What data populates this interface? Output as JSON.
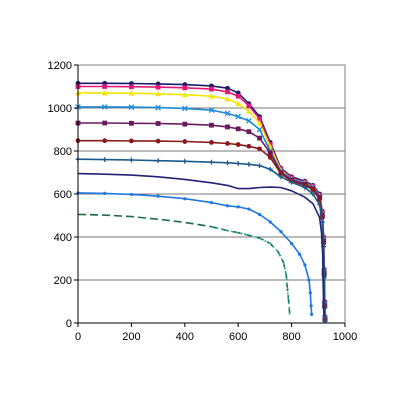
{
  "chart_data": {
    "type": "line",
    "title": "",
    "xlabel": "",
    "ylabel": "",
    "xlim": [
      0,
      1000
    ],
    "ylim": [
      0,
      1200
    ],
    "x_ticks": [
      0,
      200,
      400,
      600,
      800,
      1000
    ],
    "y_ticks": [
      0,
      200,
      400,
      600,
      800,
      1000,
      1200
    ],
    "x_tick_labels": [
      "0",
      "200",
      "400",
      "600",
      "800",
      "1000"
    ],
    "y_tick_labels": [
      "0",
      "200",
      "400",
      "600",
      "800",
      "1000",
      "1200"
    ],
    "grid": {
      "horizontal": true,
      "vertical": false
    },
    "legend": "none",
    "series": [
      {
        "color": "#1a1a6b",
        "marker": "circle",
        "dash": "",
        "points": [
          [
            0,
            1115
          ],
          [
            100,
            1115
          ],
          [
            200,
            1114
          ],
          [
            300,
            1112
          ],
          [
            400,
            1109
          ],
          [
            500,
            1103
          ],
          [
            560,
            1092
          ],
          [
            600,
            1070
          ],
          [
            640,
            1020
          ],
          [
            680,
            960
          ],
          [
            720,
            840
          ],
          [
            760,
            720
          ],
          [
            800,
            680
          ],
          [
            850,
            660
          ],
          [
            880,
            640
          ],
          [
            905,
            600
          ],
          [
            915,
            520
          ],
          [
            920,
            400
          ],
          [
            922,
            250
          ],
          [
            924,
            100
          ],
          [
            925,
            30
          ]
        ]
      },
      {
        "color": "#e0197a",
        "marker": "square",
        "dash": "",
        "points": [
          [
            0,
            1100
          ],
          [
            100,
            1100
          ],
          [
            200,
            1099
          ],
          [
            300,
            1097
          ],
          [
            400,
            1094
          ],
          [
            500,
            1088
          ],
          [
            560,
            1075
          ],
          [
            600,
            1055
          ],
          [
            640,
            1010
          ],
          [
            680,
            950
          ],
          [
            720,
            830
          ],
          [
            760,
            715
          ],
          [
            800,
            675
          ],
          [
            850,
            655
          ],
          [
            880,
            635
          ],
          [
            905,
            595
          ],
          [
            915,
            515
          ],
          [
            920,
            395
          ],
          [
            922,
            245
          ],
          [
            924,
            95
          ],
          [
            925,
            25
          ]
        ]
      },
      {
        "color": "#f2e600",
        "marker": "triangle",
        "dash": "",
        "points": [
          [
            0,
            1070
          ],
          [
            100,
            1070
          ],
          [
            200,
            1069
          ],
          [
            300,
            1066
          ],
          [
            400,
            1062
          ],
          [
            500,
            1055
          ],
          [
            560,
            1042
          ],
          [
            600,
            1020
          ],
          [
            640,
            985
          ],
          [
            680,
            930
          ],
          [
            720,
            820
          ],
          [
            760,
            710
          ],
          [
            800,
            670
          ],
          [
            850,
            650
          ],
          [
            880,
            630
          ],
          [
            905,
            590
          ],
          [
            915,
            510
          ],
          [
            920,
            390
          ],
          [
            922,
            240
          ],
          [
            924,
            90
          ],
          [
            925,
            20
          ]
        ]
      },
      {
        "color": "#1e8ad6",
        "marker": "x",
        "dash": "",
        "points": [
          [
            0,
            1005
          ],
          [
            100,
            1005
          ],
          [
            200,
            1004
          ],
          [
            300,
            1002
          ],
          [
            400,
            998
          ],
          [
            500,
            990
          ],
          [
            560,
            975
          ],
          [
            600,
            960
          ],
          [
            640,
            940
          ],
          [
            680,
            900
          ],
          [
            720,
            800
          ],
          [
            760,
            705
          ],
          [
            800,
            670
          ],
          [
            850,
            650
          ],
          [
            880,
            630
          ],
          [
            905,
            590
          ],
          [
            915,
            505
          ],
          [
            920,
            385
          ],
          [
            922,
            235
          ],
          [
            924,
            85
          ],
          [
            925,
            20
          ]
        ]
      },
      {
        "color": "#6a1a5c",
        "marker": "square",
        "dash": "",
        "points": [
          [
            0,
            930
          ],
          [
            100,
            930
          ],
          [
            200,
            929
          ],
          [
            300,
            928
          ],
          [
            400,
            925
          ],
          [
            500,
            920
          ],
          [
            560,
            912
          ],
          [
            600,
            903
          ],
          [
            640,
            890
          ],
          [
            680,
            860
          ],
          [
            720,
            790
          ],
          [
            760,
            700
          ],
          [
            800,
            665
          ],
          [
            850,
            645
          ],
          [
            880,
            625
          ],
          [
            905,
            585
          ],
          [
            915,
            500
          ],
          [
            920,
            380
          ],
          [
            922,
            230
          ],
          [
            924,
            80
          ],
          [
            925,
            15
          ]
        ]
      },
      {
        "color": "#8b1a1a",
        "marker": "circle",
        "dash": "",
        "points": [
          [
            0,
            848
          ],
          [
            100,
            848
          ],
          [
            200,
            847
          ],
          [
            300,
            846
          ],
          [
            400,
            844
          ],
          [
            500,
            840
          ],
          [
            560,
            835
          ],
          [
            600,
            830
          ],
          [
            640,
            822
          ],
          [
            680,
            810
          ],
          [
            720,
            770
          ],
          [
            760,
            695
          ],
          [
            800,
            660
          ],
          [
            850,
            640
          ],
          [
            880,
            620
          ],
          [
            905,
            575
          ],
          [
            915,
            490
          ],
          [
            920,
            370
          ],
          [
            922,
            220
          ],
          [
            924,
            75
          ],
          [
            925,
            15
          ]
        ]
      },
      {
        "color": "#1a5a8c",
        "marker": "plus",
        "dash": "",
        "points": [
          [
            0,
            762
          ],
          [
            100,
            760
          ],
          [
            200,
            758
          ],
          [
            300,
            755
          ],
          [
            400,
            752
          ],
          [
            500,
            748
          ],
          [
            560,
            745
          ],
          [
            600,
            742
          ],
          [
            640,
            738
          ],
          [
            680,
            732
          ],
          [
            720,
            715
          ],
          [
            760,
            680
          ],
          [
            800,
            655
          ],
          [
            850,
            630
          ],
          [
            880,
            600
          ],
          [
            905,
            550
          ],
          [
            915,
            470
          ],
          [
            920,
            355
          ],
          [
            922,
            210
          ],
          [
            924,
            70
          ],
          [
            925,
            10
          ]
        ]
      },
      {
        "color": "#22227a",
        "marker": "none",
        "dash": "",
        "points": [
          [
            0,
            695
          ],
          [
            100,
            692
          ],
          [
            200,
            688
          ],
          [
            300,
            680
          ],
          [
            400,
            668
          ],
          [
            500,
            652
          ],
          [
            560,
            640
          ],
          [
            600,
            625
          ],
          [
            640,
            625
          ],
          [
            680,
            630
          ],
          [
            720,
            632
          ],
          [
            760,
            630
          ],
          [
            800,
            615
          ],
          [
            850,
            585
          ],
          [
            880,
            555
          ],
          [
            905,
            490
          ],
          [
            912,
            420
          ],
          [
            916,
            330
          ],
          [
            918,
            200
          ],
          [
            920,
            80
          ],
          [
            921,
            30
          ]
        ]
      },
      {
        "color": "#1e78e0",
        "marker": "dot",
        "dash": "",
        "points": [
          [
            0,
            605
          ],
          [
            100,
            603
          ],
          [
            200,
            598
          ],
          [
            300,
            590
          ],
          [
            400,
            578
          ],
          [
            500,
            560
          ],
          [
            560,
            545
          ],
          [
            600,
            540
          ],
          [
            640,
            530
          ],
          [
            680,
            505
          ],
          [
            720,
            470
          ],
          [
            760,
            425
          ],
          [
            800,
            370
          ],
          [
            830,
            320
          ],
          [
            850,
            270
          ],
          [
            865,
            200
          ],
          [
            870,
            140
          ],
          [
            873,
            80
          ],
          [
            875,
            40
          ]
        ]
      },
      {
        "color": "#1a6b4a",
        "marker": "none",
        "dash": "8,4",
        "points": [
          [
            0,
            505
          ],
          [
            100,
            502
          ],
          [
            200,
            495
          ],
          [
            300,
            483
          ],
          [
            400,
            468
          ],
          [
            500,
            448
          ],
          [
            560,
            430
          ],
          [
            600,
            420
          ],
          [
            640,
            408
          ],
          [
            680,
            395
          ],
          [
            720,
            370
          ],
          [
            750,
            330
          ],
          [
            770,
            280
          ],
          [
            780,
            220
          ],
          [
            785,
            150
          ],
          [
            790,
            90
          ],
          [
            793,
            40
          ]
        ]
      },
      {
        "color": "#2ab5a8",
        "marker": "none",
        "dash": "2,3",
        "points": [
          [
            500,
            448
          ],
          [
            560,
            430
          ],
          [
            600,
            420
          ],
          [
            640,
            408
          ],
          [
            680,
            395
          ],
          [
            720,
            370
          ],
          [
            750,
            330
          ],
          [
            770,
            280
          ],
          [
            780,
            220
          ],
          [
            785,
            150
          ],
          [
            790,
            90
          ],
          [
            793,
            40
          ]
        ]
      }
    ]
  }
}
